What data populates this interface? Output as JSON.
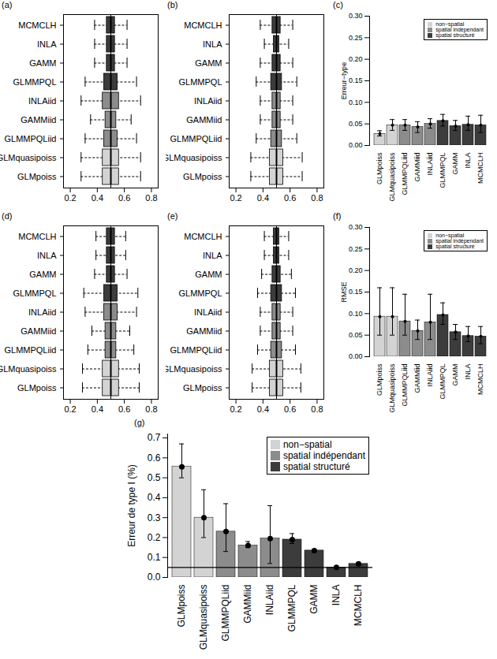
{
  "chart_data": [
    {
      "type": "box",
      "title": "(a)",
      "orientation": "horizontal",
      "categories": [
        "GLMpoiss",
        "GLMquasipoiss",
        "GLMMPQLiid",
        "GAMMiid",
        "INLAiid",
        "GLMMPQL",
        "GAMM",
        "INLA",
        "MCMCLH"
      ],
      "whisker_low": [
        0.28,
        0.28,
        0.31,
        0.35,
        0.28,
        0.31,
        0.38,
        0.38,
        0.38
      ],
      "q1": [
        0.44,
        0.44,
        0.45,
        0.46,
        0.44,
        0.45,
        0.47,
        0.47,
        0.47
      ],
      "median": [
        0.5,
        0.5,
        0.5,
        0.5,
        0.5,
        0.5,
        0.5,
        0.5,
        0.5
      ],
      "q3": [
        0.56,
        0.56,
        0.55,
        0.54,
        0.56,
        0.55,
        0.53,
        0.53,
        0.53
      ],
      "whisker_high": [
        0.72,
        0.72,
        0.69,
        0.65,
        0.72,
        0.69,
        0.62,
        0.62,
        0.62
      ],
      "colors": [
        "#d3d3d3",
        "#d3d3d3",
        "#8c8c8c",
        "#8c8c8c",
        "#8c8c8c",
        "#3c3c3c",
        "#3c3c3c",
        "#3c3c3c",
        "#3c3c3c"
      ],
      "xlim": [
        0.15,
        0.85
      ],
      "xticks": [
        0.2,
        0.4,
        0.6,
        0.8
      ],
      "reference_line": 0.5
    },
    {
      "type": "box",
      "title": "(b)",
      "orientation": "horizontal",
      "categories": [
        "GLMpoiss",
        "GLMquasipoiss",
        "GLMMPQLiid",
        "GAMMiid",
        "INLAiid",
        "GLMMPQL",
        "GAMM",
        "INLA",
        "MCMCLH"
      ],
      "whisker_low": [
        0.31,
        0.31,
        0.35,
        0.38,
        0.38,
        0.35,
        0.38,
        0.41,
        0.38
      ],
      "q1": [
        0.45,
        0.45,
        0.46,
        0.47,
        0.47,
        0.46,
        0.47,
        0.48,
        0.47
      ],
      "median": [
        0.5,
        0.5,
        0.5,
        0.5,
        0.5,
        0.5,
        0.5,
        0.5,
        0.5
      ],
      "q3": [
        0.55,
        0.55,
        0.54,
        0.53,
        0.53,
        0.54,
        0.53,
        0.52,
        0.53
      ],
      "whisker_high": [
        0.69,
        0.69,
        0.65,
        0.62,
        0.62,
        0.65,
        0.62,
        0.59,
        0.62
      ],
      "colors": [
        "#d3d3d3",
        "#d3d3d3",
        "#8c8c8c",
        "#8c8c8c",
        "#8c8c8c",
        "#3c3c3c",
        "#3c3c3c",
        "#3c3c3c",
        "#3c3c3c"
      ],
      "xlim": [
        0.15,
        0.85
      ],
      "xticks": [
        0.2,
        0.4,
        0.6,
        0.8
      ],
      "reference_line": 0.5
    },
    {
      "type": "bar",
      "title": "(c)",
      "y_label": "Erreur−type",
      "legend": "top-right",
      "marker": "circle",
      "categories": [
        "GLMpoiss",
        "GLMquasipoiss",
        "GLMMPQLiid",
        "GAMMiid",
        "INLAiid",
        "GLMMPQL",
        "GAMM",
        "INLA",
        "MCMCLH"
      ],
      "series": [
        {
          "name": "non−spatial",
          "color": "#d3d3d3",
          "values": [
            0.027,
            0.047,
            null,
            null,
            null,
            null,
            null,
            null,
            null
          ],
          "error_low": [
            0.022,
            0.035,
            null,
            null,
            null,
            null,
            null,
            null,
            null
          ],
          "error_high": [
            0.034,
            0.06,
            null,
            null,
            null,
            null,
            null,
            null,
            null
          ]
        },
        {
          "name": "spatial indépendant",
          "color": "#8c8c8c",
          "values": [
            null,
            null,
            0.047,
            0.043,
            0.05,
            null,
            null,
            null,
            null
          ],
          "error_low": [
            null,
            null,
            0.035,
            0.03,
            0.04,
            null,
            null,
            null,
            null
          ],
          "error_high": [
            null,
            null,
            0.06,
            0.055,
            0.062,
            null,
            null,
            null,
            null
          ]
        },
        {
          "name": "spatial structuré",
          "color": "#3c3c3c",
          "values": [
            null,
            null,
            null,
            null,
            null,
            0.057,
            0.045,
            0.048,
            0.047
          ],
          "error_low": [
            null,
            null,
            null,
            null,
            null,
            0.045,
            0.035,
            0.035,
            0.03
          ],
          "error_high": [
            null,
            null,
            null,
            null,
            null,
            0.072,
            0.058,
            0.068,
            0.07
          ]
        }
      ],
      "ylim": [
        0,
        0.3
      ],
      "yticks": [
        {
          "value": 0,
          "label": "0.00"
        },
        0.05,
        {
          "value": 0.1,
          "label": "0.10"
        },
        0.15,
        {
          "value": 0.2,
          "label": "0.20"
        },
        0.25,
        {
          "value": 0.3,
          "label": "0.30"
        }
      ]
    },
    {
      "type": "box",
      "title": "(d)",
      "orientation": "horizontal",
      "categories": [
        "GLMpoiss",
        "GLMquasipoiss",
        "GLMMPQLiid",
        "GAMMiid",
        "INLAiid",
        "GLMMPQL",
        "GAMM",
        "INLA",
        "MCMCLH"
      ],
      "whisker_low": [
        0.29,
        0.29,
        0.33,
        0.36,
        0.31,
        0.3,
        0.38,
        0.39,
        0.39
      ],
      "q1": [
        0.44,
        0.44,
        0.46,
        0.46,
        0.45,
        0.45,
        0.47,
        0.47,
        0.47
      ],
      "median": [
        0.5,
        0.5,
        0.5,
        0.5,
        0.5,
        0.5,
        0.5,
        0.5,
        0.5
      ],
      "q3": [
        0.56,
        0.56,
        0.54,
        0.54,
        0.55,
        0.55,
        0.53,
        0.53,
        0.53
      ],
      "whisker_high": [
        0.71,
        0.71,
        0.67,
        0.64,
        0.69,
        0.7,
        0.62,
        0.61,
        0.61
      ],
      "colors": [
        "#d3d3d3",
        "#d3d3d3",
        "#8c8c8c",
        "#8c8c8c",
        "#8c8c8c",
        "#3c3c3c",
        "#3c3c3c",
        "#3c3c3c",
        "#3c3c3c"
      ],
      "xlim": [
        0.15,
        0.85
      ],
      "xticks": [
        0.2,
        0.4,
        0.6,
        0.8
      ],
      "reference_line": 0.5
    },
    {
      "type": "box",
      "title": "(e)",
      "orientation": "horizontal",
      "categories": [
        "GLMpoiss",
        "GLMquasipoiss",
        "GLMMPQLiid",
        "GAMMiid",
        "INLAiid",
        "GLMMPQL",
        "GAMM",
        "INLA",
        "MCMCLH"
      ],
      "whisker_low": [
        0.32,
        0.32,
        0.36,
        0.38,
        0.38,
        0.36,
        0.39,
        0.41,
        0.41
      ],
      "q1": [
        0.45,
        0.45,
        0.46,
        0.47,
        0.47,
        0.46,
        0.47,
        0.48,
        0.48
      ],
      "median": [
        0.5,
        0.5,
        0.5,
        0.5,
        0.5,
        0.5,
        0.5,
        0.5,
        0.5
      ],
      "q3": [
        0.55,
        0.55,
        0.54,
        0.53,
        0.53,
        0.54,
        0.53,
        0.52,
        0.52
      ],
      "whisker_high": [
        0.68,
        0.68,
        0.64,
        0.62,
        0.62,
        0.64,
        0.61,
        0.59,
        0.59
      ],
      "colors": [
        "#d3d3d3",
        "#d3d3d3",
        "#8c8c8c",
        "#8c8c8c",
        "#8c8c8c",
        "#3c3c3c",
        "#3c3c3c",
        "#3c3c3c",
        "#3c3c3c"
      ],
      "xlim": [
        0.15,
        0.85
      ],
      "xticks": [
        0.2,
        0.4,
        0.6,
        0.8
      ],
      "reference_line": 0.5
    },
    {
      "type": "bar",
      "title": "(f)",
      "y_label": "RMSE",
      "legend": "top-right",
      "marker": "circle",
      "categories": [
        "GLMpoiss",
        "GLMquasipoiss",
        "GLMMPQLiid",
        "GAMMiid",
        "INLAiid",
        "GLMMPQL",
        "GAMM",
        "INLA",
        "MCMCLH"
      ],
      "series": [
        {
          "name": "non−spatial",
          "color": "#d3d3d3",
          "values": [
            0.093,
            0.093,
            null,
            null,
            null,
            null,
            null,
            null,
            null
          ],
          "error_low": [
            0.05,
            0.05,
            null,
            null,
            null,
            null,
            null,
            null,
            null
          ],
          "error_high": [
            0.16,
            0.16,
            null,
            null,
            null,
            null,
            null,
            null,
            null
          ]
        },
        {
          "name": "spatial indépendant",
          "color": "#8c8c8c",
          "values": [
            null,
            null,
            0.082,
            0.06,
            0.08,
            null,
            null,
            null,
            null
          ],
          "error_low": [
            null,
            null,
            0.05,
            0.04,
            0.04,
            null,
            null,
            null,
            null
          ],
          "error_high": [
            null,
            null,
            0.145,
            0.085,
            0.145,
            null,
            null,
            null,
            null
          ]
        },
        {
          "name": "spatial structuré",
          "color": "#3c3c3c",
          "values": [
            null,
            null,
            null,
            null,
            null,
            0.097,
            0.057,
            0.048,
            0.047
          ],
          "error_low": [
            null,
            null,
            null,
            null,
            null,
            0.075,
            0.04,
            0.035,
            0.03
          ],
          "error_high": [
            null,
            null,
            null,
            null,
            null,
            0.125,
            0.075,
            0.07,
            0.07
          ]
        }
      ],
      "ylim": [
        0,
        0.3
      ],
      "yticks": [
        {
          "value": 0,
          "label": "0.00"
        },
        0.05,
        {
          "value": 0.1,
          "label": "0.10"
        },
        0.15,
        {
          "value": 0.2,
          "label": "0.20"
        },
        0.25,
        {
          "value": 0.3,
          "label": "0.30"
        }
      ]
    },
    {
      "type": "bar",
      "title": "(g)",
      "y_label": "Erreur de type I (%)",
      "legend": "top-right",
      "marker": "circle",
      "categories": [
        "GLMpoiss",
        "GLMquasipoiss",
        "GLMMPQLiid",
        "GAMMiid",
        "INLAiid",
        "GLMMPQL",
        "GAMM",
        "INLA",
        "MCMCLH"
      ],
      "series": [
        {
          "name": "non−spatial",
          "color": "#d3d3d3",
          "values": [
            0.555,
            0.3,
            null,
            null,
            null,
            null,
            null,
            null,
            null
          ],
          "error_low": [
            0.5,
            0.2,
            null,
            null,
            null,
            null,
            null,
            null,
            null
          ],
          "error_high": [
            0.67,
            0.44,
            null,
            null,
            null,
            null,
            null,
            null,
            null
          ]
        },
        {
          "name": "spatial indépendant",
          "color": "#8c8c8c",
          "values": [
            null,
            null,
            0.23,
            0.16,
            0.195,
            null,
            null,
            null,
            null
          ],
          "error_low": [
            null,
            null,
            0.13,
            0.15,
            0.07,
            null,
            null,
            null,
            null
          ],
          "error_high": [
            null,
            null,
            0.37,
            0.18,
            0.36,
            null,
            null,
            null,
            null
          ]
        },
        {
          "name": "spatial structuré",
          "color": "#3c3c3c",
          "values": [
            null,
            null,
            null,
            null,
            null,
            0.19,
            0.135,
            0.05,
            0.068
          ],
          "error_low": [
            null,
            null,
            null,
            null,
            null,
            0.17,
            0.125,
            0.045,
            0.06
          ],
          "error_high": [
            null,
            null,
            null,
            null,
            null,
            0.22,
            0.14,
            0.055,
            0.075
          ]
        }
      ],
      "reference_line": 0.05,
      "ylim": [
        0,
        0.72
      ],
      "yticks": [
        {
          "value": 0,
          "label": "0.0"
        },
        0.1,
        0.2,
        0.3,
        0.4,
        0.5,
        0.6,
        0.7
      ]
    }
  ]
}
